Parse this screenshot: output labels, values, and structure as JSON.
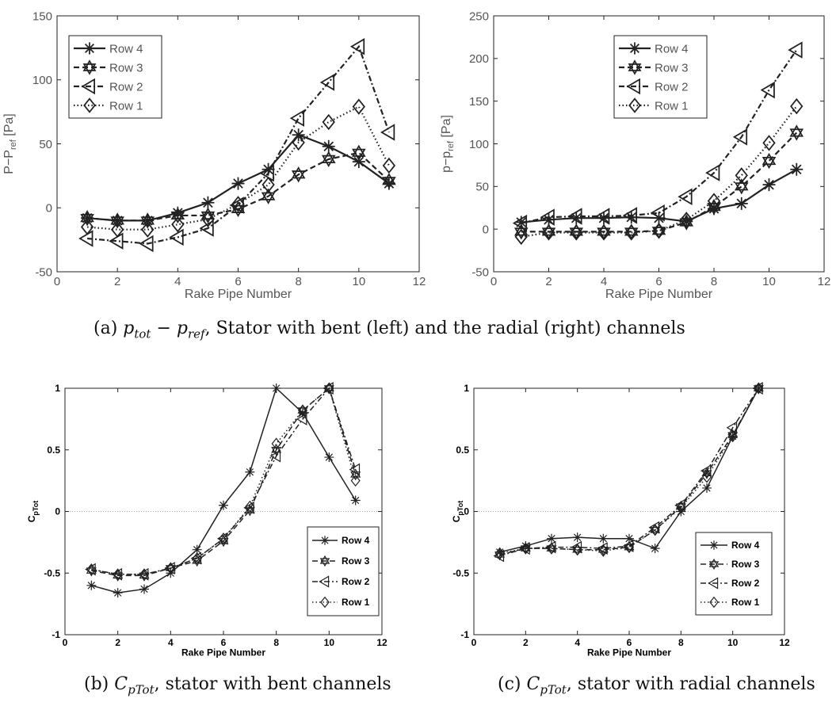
{
  "figure": {
    "captions": {
      "a": {
        "prefix": "(a) ",
        "math": "p_tot − p_ref",
        "math_main1": "p",
        "math_sub1": "tot",
        "math_minus": " − ",
        "math_main2": "p",
        "math_sub2": "ref",
        "rest": ", Stator with bent (left) and the radial (right) channels"
      },
      "b": {
        "prefix": "(b) ",
        "math": "C_pTot",
        "math_main": "C",
        "math_sub": "pTot",
        "rest": ", stator with bent channels"
      },
      "c": {
        "prefix": "(c) ",
        "math": "C_pTot",
        "math_main": "C",
        "math_sub": "pTot",
        "rest": ", stator with radial channels"
      }
    },
    "colors": {
      "text_a": "#555555",
      "text_bc": "#000000",
      "zero_line": "#999999"
    }
  },
  "chart_data": [
    {
      "id": "a-left",
      "type": "line",
      "xlabel": "Rake Pipe Number",
      "ylabel": "P−P_ref [Pa]",
      "ylabel_main": "P−P",
      "ylabel_sub": "ref",
      "ylabel_tail": " [Pa]",
      "xlim": [
        0,
        12
      ],
      "ylim": [
        -50,
        150
      ],
      "xticks": [
        0,
        2,
        4,
        6,
        8,
        10,
        12
      ],
      "yticks": [
        -50,
        0,
        50,
        100,
        150
      ],
      "legend_position": "top-left",
      "grid": false,
      "x": [
        1,
        2,
        3,
        4,
        5,
        6,
        7,
        8,
        9,
        10,
        11
      ],
      "series": [
        {
          "name": "Row 4",
          "marker": "asterisk",
          "dash": "solid",
          "values": [
            -8,
            -10,
            -10,
            -4,
            4,
            19,
            30,
            57,
            48,
            36,
            19
          ]
        },
        {
          "name": "Row 3",
          "marker": "hexagram",
          "dash": "dashed",
          "values": [
            -8,
            -10,
            -10,
            -6,
            -6,
            -1,
            9,
            26,
            38,
            43,
            21
          ]
        },
        {
          "name": "Row 2",
          "marker": "triangle-left",
          "dash": "dashdot",
          "values": [
            -24,
            -26,
            -28,
            -23,
            -16,
            2,
            27,
            70,
            98,
            126,
            59
          ]
        },
        {
          "name": "Row 1",
          "marker": "diamond",
          "dash": "dotted",
          "values": [
            -15,
            -17,
            -17,
            -13,
            -9,
            3,
            18,
            51,
            67,
            79,
            33
          ]
        }
      ]
    },
    {
      "id": "a-right",
      "type": "line",
      "xlabel": "Rake Pipe Number",
      "ylabel": "p−p_ref [Pa]",
      "ylabel_main": "p−p",
      "ylabel_sub": "ref",
      "ylabel_tail": " [Pa]",
      "xlim": [
        0,
        12
      ],
      "ylim": [
        -50,
        250
      ],
      "xticks": [
        0,
        2,
        4,
        6,
        8,
        10,
        12
      ],
      "yticks": [
        -50,
        0,
        50,
        100,
        150,
        200,
        250
      ],
      "legend_position": "top-center",
      "grid": false,
      "x": [
        1,
        2,
        3,
        4,
        5,
        6,
        7,
        8,
        9,
        10,
        11
      ],
      "series": [
        {
          "name": "Row 4",
          "marker": "asterisk",
          "dash": "solid",
          "values": [
            8,
            11,
            13,
            13,
            14,
            13,
            9,
            24,
            30,
            52,
            70
          ]
        },
        {
          "name": "Row 3",
          "marker": "hexagram",
          "dash": "dashed",
          "values": [
            -3,
            -3,
            -3,
            -3,
            -3,
            -2,
            8,
            26,
            50,
            80,
            113
          ]
        },
        {
          "name": "Row 2",
          "marker": "triangle-left",
          "dash": "dashdot",
          "values": [
            7,
            14,
            15,
            15,
            16,
            19,
            38,
            66,
            108,
            163,
            210
          ]
        },
        {
          "name": "Row 1",
          "marker": "diamond",
          "dash": "dotted",
          "values": [
            -9,
            -4,
            -4,
            -4,
            -4,
            -2,
            11,
            33,
            63,
            101,
            144
          ]
        }
      ]
    },
    {
      "id": "b",
      "type": "line",
      "xlabel": "Rake Pipe Number",
      "ylabel": "C_pTot",
      "ylabel_main": "C",
      "ylabel_sub": "pTot",
      "ylabel_tail": "",
      "xlim": [
        0,
        12
      ],
      "ylim": [
        -1,
        1
      ],
      "xticks": [
        0,
        2,
        4,
        6,
        8,
        10,
        12
      ],
      "yticks": [
        -1,
        -0.5,
        0,
        0.5,
        1
      ],
      "legend_position": "bottom-right",
      "grid": false,
      "zero_line": true,
      "x": [
        1,
        2,
        3,
        4,
        5,
        6,
        7,
        8,
        9,
        10,
        11
      ],
      "series": [
        {
          "name": "Row 4",
          "marker": "asterisk",
          "dash": "solid",
          "values": [
            -0.6,
            -0.66,
            -0.63,
            -0.5,
            -0.31,
            0.05,
            0.32,
            1.0,
            0.8,
            0.44,
            0.09
          ]
        },
        {
          "name": "Row 3",
          "marker": "hexagram",
          "dash": "dashed",
          "values": [
            -0.48,
            -0.52,
            -0.52,
            -0.46,
            -0.4,
            -0.24,
            0.01,
            0.5,
            0.82,
            1.0,
            0.3
          ]
        },
        {
          "name": "Row 2",
          "marker": "triangle-left",
          "dash": "dashdot",
          "values": [
            -0.47,
            -0.51,
            -0.51,
            -0.46,
            -0.38,
            -0.22,
            0.03,
            0.45,
            0.75,
            1.0,
            0.34
          ]
        },
        {
          "name": "Row 1",
          "marker": "diamond",
          "dash": "dotted",
          "values": [
            -0.47,
            -0.51,
            -0.51,
            -0.46,
            -0.38,
            -0.22,
            0.04,
            0.55,
            0.82,
            1.0,
            0.25
          ]
        }
      ]
    },
    {
      "id": "c",
      "type": "line",
      "xlabel": "Rake Pipe Number",
      "ylabel": "C_pTot",
      "ylabel_main": "C",
      "ylabel_sub": "pTot",
      "ylabel_tail": "",
      "xlim": [
        0,
        12
      ],
      "ylim": [
        -1,
        1
      ],
      "xticks": [
        0,
        2,
        4,
        6,
        8,
        10,
        12
      ],
      "yticks": [
        -1,
        -0.5,
        0,
        0.5,
        1
      ],
      "legend_position": "right",
      "grid": false,
      "zero_line": true,
      "x": [
        1,
        2,
        3,
        4,
        5,
        6,
        7,
        8,
        9,
        10,
        11
      ],
      "series": [
        {
          "name": "Row 4",
          "marker": "asterisk",
          "dash": "solid",
          "values": [
            -0.33,
            -0.28,
            -0.22,
            -0.21,
            -0.22,
            -0.22,
            -0.3,
            0.0,
            0.19,
            0.61,
            1.0
          ]
        },
        {
          "name": "Row 3",
          "marker": "hexagram",
          "dash": "dashed",
          "values": [
            -0.35,
            -0.3,
            -0.3,
            -0.31,
            -0.31,
            -0.29,
            -0.15,
            0.04,
            0.31,
            0.62,
            1.0
          ]
        },
        {
          "name": "Row 2",
          "marker": "triangle-left",
          "dash": "dashdot",
          "values": [
            -0.36,
            -0.3,
            -0.29,
            -0.29,
            -0.3,
            -0.28,
            -0.13,
            0.05,
            0.33,
            0.68,
            1.0
          ]
        },
        {
          "name": "Row 1",
          "marker": "diamond",
          "dash": "dotted",
          "values": [
            -0.34,
            -0.3,
            -0.3,
            -0.31,
            -0.32,
            -0.29,
            -0.15,
            0.03,
            0.28,
            0.61,
            1.0
          ]
        }
      ]
    }
  ]
}
